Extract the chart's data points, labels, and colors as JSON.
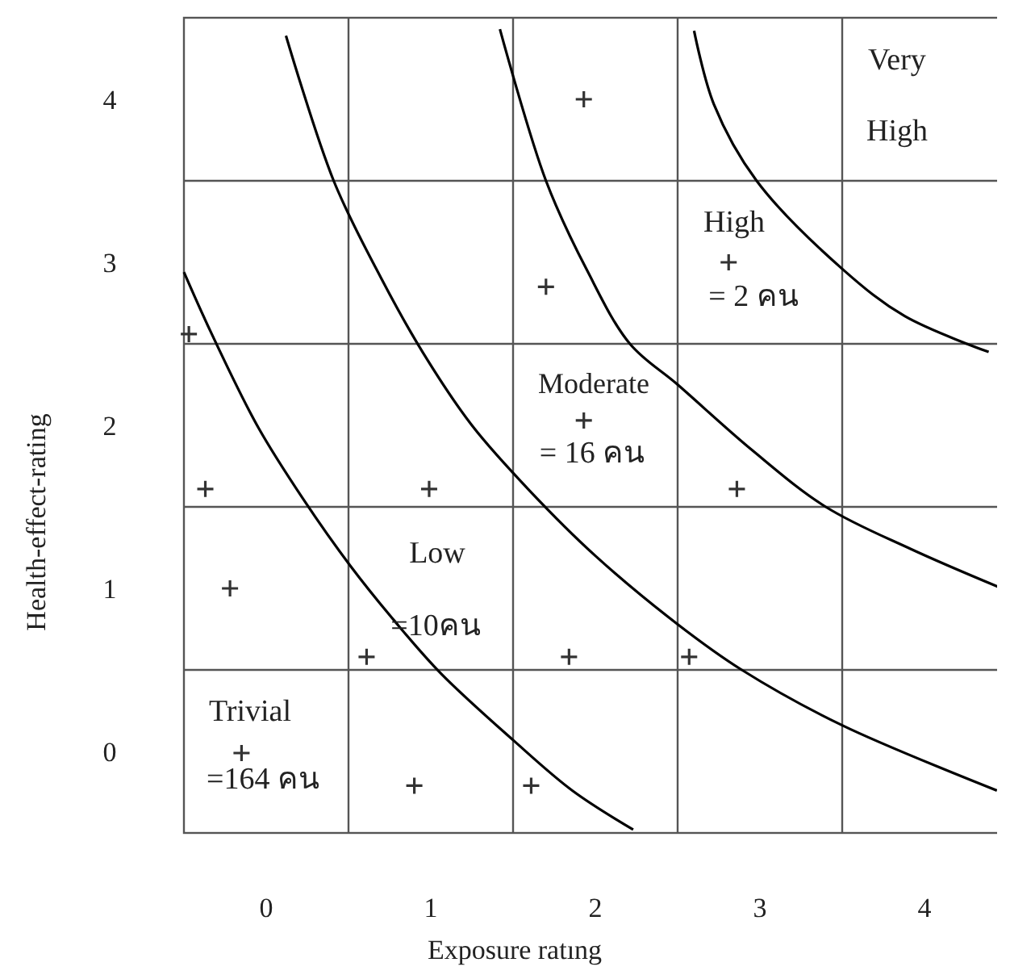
{
  "chart_data": {
    "type": "scatter",
    "xlabel": "Exposure ratıng",
    "ylabel": "Health-effect-rating",
    "xlim": [
      0,
      5
    ],
    "ylim": [
      0,
      5
    ],
    "xticks": [
      {
        "value": 0.5,
        "label": "0"
      },
      {
        "value": 1.5,
        "label": "1"
      },
      {
        "value": 2.5,
        "label": "2"
      },
      {
        "value": 3.5,
        "label": "3"
      },
      {
        "value": 4.5,
        "label": "4"
      }
    ],
    "yticks": [
      {
        "value": 0.5,
        "label": "0"
      },
      {
        "value": 1.5,
        "label": "1"
      },
      {
        "value": 2.5,
        "label": "2"
      },
      {
        "value": 3.5,
        "label": "3"
      },
      {
        "value": 4.5,
        "label": "4"
      }
    ],
    "grid": true,
    "marker": "cross",
    "series": [
      {
        "color": "#333333",
        "x": [
          2.43,
          2.2,
          3.31,
          0.03,
          2.43,
          0.13,
          1.49,
          3.36,
          0.28,
          1.11,
          2.34,
          3.07,
          0.35,
          1.4,
          2.11
        ],
        "values": [
          4.5,
          3.35,
          3.5,
          3.06,
          2.53,
          2.11,
          2.11,
          2.11,
          1.5,
          1.08,
          1.08,
          1.08,
          0.49,
          0.29,
          0.29
        ]
      },
      {
        "type": "line",
        "color": "#000000",
        "marker": "none",
        "line_style": "solid",
        "x": [
          0,
          0.16,
          0.45,
          0.73,
          1.01,
          1.28,
          1.56,
          2.0,
          2.36,
          2.73
        ],
        "values": [
          3.44,
          3.08,
          2.49,
          2.04,
          1.64,
          1.3,
          0.98,
          0.57,
          0.26,
          0.02
        ]
      },
      {
        "type": "line",
        "color": "#000000",
        "marker": "none",
        "line_style": "solid",
        "x": [
          0.62,
          0.91,
          1.2,
          1.45,
          1.75,
          2.1,
          2.5,
          3.0,
          3.39,
          4.0,
          4.94
        ],
        "values": [
          4.89,
          4.0,
          3.4,
          2.95,
          2.5,
          2.1,
          1.7,
          1.28,
          1.0,
          0.66,
          0.26
        ]
      },
      {
        "type": "line",
        "color": "#000000",
        "marker": "none",
        "line_style": "solid",
        "x": [
          1.92,
          2.2,
          2.45,
          2.71,
          3.0,
          3.45,
          3.9,
          4.42,
          4.97
        ],
        "values": [
          4.93,
          4.0,
          3.45,
          3.0,
          2.75,
          2.35,
          2.0,
          1.74,
          1.5
        ]
      },
      {
        "type": "line",
        "color": "#000000",
        "marker": "none",
        "line_style": "solid",
        "x": [
          3.1,
          3.22,
          3.48,
          4.0,
          4.38,
          4.89
        ],
        "values": [
          4.92,
          4.47,
          4.0,
          3.46,
          3.17,
          2.95
        ]
      }
    ],
    "annotations": [
      "Very High",
      "High",
      "= 2 คน",
      "Moderate",
      "= 16 คน",
      "Low",
      "=10คน",
      "Trivial",
      "=164 คน"
    ]
  }
}
